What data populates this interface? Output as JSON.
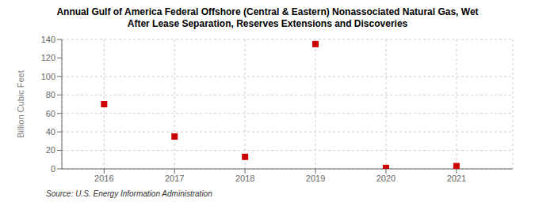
{
  "chart_data": {
    "type": "scatter",
    "title": "Annual Gulf of America Federal Offshore (Central & Eastern) Nonassociated Natural Gas, Wet\nAfter Lease Separation, Reserves Extensions and Discoveries",
    "ylabel": "Billion Cubic Feet",
    "source": "Source: U.S. Energy Information Administration",
    "x": [
      2016,
      2017,
      2018,
      2019,
      2020,
      2021
    ],
    "values": [
      70,
      35,
      13,
      135,
      1,
      3
    ],
    "xlim": [
      2015.4,
      2021.8
    ],
    "xticks": [
      2016,
      2017,
      2018,
      2019,
      2020,
      2021
    ],
    "ylim": [
      0,
      140
    ],
    "yticks": [
      0,
      20,
      40,
      60,
      80,
      100,
      120,
      140
    ],
    "color": "#cc0000",
    "marker": "square",
    "grid": true
  }
}
